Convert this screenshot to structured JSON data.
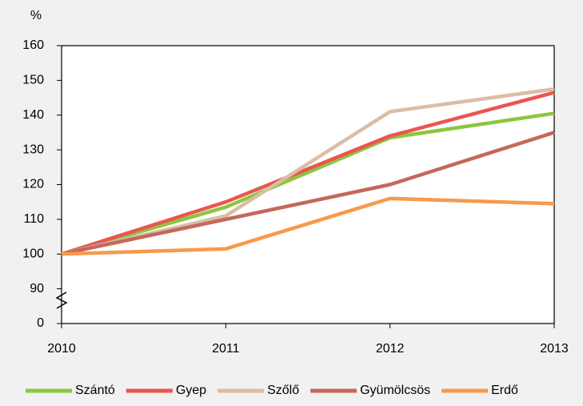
{
  "chart_data": {
    "type": "line",
    "y_unit_label": "%",
    "categories": [
      "2010",
      "2011",
      "2012",
      "2013"
    ],
    "series": [
      {
        "name": "Szántó",
        "color": "#8cc63e",
        "values": [
          100,
          113.5,
          133.5,
          140.5
        ]
      },
      {
        "name": "Gyep",
        "color": "#e8574f",
        "values": [
          100,
          115,
          134,
          146.5
        ]
      },
      {
        "name": "Szőlő",
        "color": "#d9bea6",
        "values": [
          100,
          111,
          141,
          147.5
        ]
      },
      {
        "name": "Gyümölcsös",
        "color": "#c4685a",
        "values": [
          100,
          110,
          120,
          135
        ]
      },
      {
        "name": "Erdő",
        "color": "#f79a4a",
        "values": [
          100,
          101.5,
          116,
          114.5
        ]
      }
    ],
    "ylim": [
      0,
      160
    ],
    "yticks": [
      0,
      90,
      100,
      110,
      120,
      130,
      140,
      150,
      160
    ],
    "y_break": [
      0,
      90
    ],
    "grid": false,
    "legend": "bottom"
  }
}
